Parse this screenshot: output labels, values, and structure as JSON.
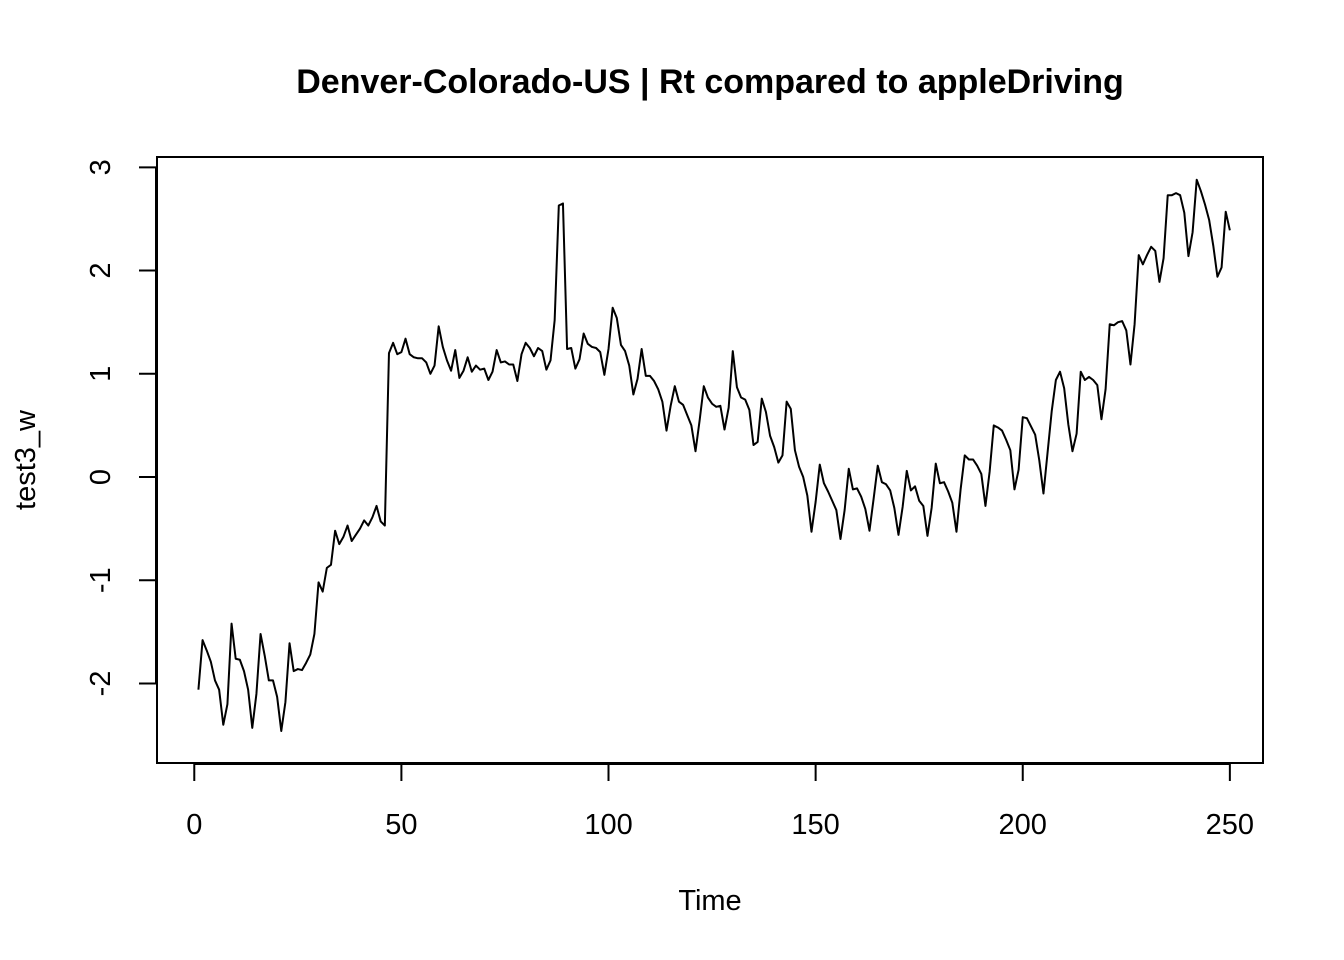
{
  "chart_data": {
    "type": "line",
    "title": "Denver-Colorado-US | Rt compared to appleDriving",
    "xlabel": "Time",
    "ylabel": "test3_w",
    "xlim": [
      -9,
      258
    ],
    "ylim": [
      -2.77,
      3.1
    ],
    "x_ticks": [
      0,
      50,
      100,
      150,
      200,
      250
    ],
    "y_ticks": [
      -2,
      -1,
      0,
      1,
      2,
      3
    ],
    "x_tick_labels": [
      "0",
      "50",
      "100",
      "150",
      "200",
      "250"
    ],
    "y_tick_labels": [
      "-2",
      "-1",
      "0",
      "1",
      "2",
      "3"
    ],
    "grid": false,
    "legend": "none",
    "line_color": "#000000",
    "x_start": 1,
    "values": [
      -2.06,
      -1.58,
      -1.68,
      -1.79,
      -1.97,
      -2.06,
      -2.4,
      -2.2,
      -1.42,
      -1.76,
      -1.77,
      -1.88,
      -2.06,
      -2.43,
      -2.1,
      -1.52,
      -1.73,
      -1.97,
      -1.97,
      -2.13,
      -2.46,
      -2.18,
      -1.61,
      -1.88,
      -1.86,
      -1.87,
      -1.8,
      -1.72,
      -1.52,
      -1.02,
      -1.11,
      -0.88,
      -0.85,
      -0.52,
      -0.65,
      -0.58,
      -0.47,
      -0.62,
      -0.56,
      -0.5,
      -0.42,
      -0.47,
      -0.39,
      -0.28,
      -0.43,
      -0.47,
      1.2,
      1.3,
      1.19,
      1.21,
      1.34,
      1.19,
      1.16,
      1.15,
      1.15,
      1.11,
      1.0,
      1.08,
      1.46,
      1.26,
      1.13,
      1.03,
      1.23,
      0.96,
      1.03,
      1.16,
      1.02,
      1.08,
      1.04,
      1.05,
      0.94,
      1.02,
      1.23,
      1.11,
      1.12,
      1.09,
      1.09,
      0.93,
      1.19,
      1.3,
      1.25,
      1.17,
      1.25,
      1.22,
      1.04,
      1.13,
      1.52,
      2.63,
      2.65,
      1.24,
      1.25,
      1.05,
      1.14,
      1.39,
      1.29,
      1.26,
      1.25,
      1.21,
      0.99,
      1.24,
      1.64,
      1.54,
      1.28,
      1.22,
      1.08,
      0.8,
      0.95,
      1.24,
      0.98,
      0.98,
      0.93,
      0.85,
      0.73,
      0.45,
      0.69,
      0.88,
      0.73,
      0.7,
      0.6,
      0.5,
      0.25,
      0.55,
      0.88,
      0.77,
      0.71,
      0.68,
      0.69,
      0.46,
      0.67,
      1.22,
      0.87,
      0.77,
      0.75,
      0.65,
      0.31,
      0.34,
      0.76,
      0.63,
      0.4,
      0.29,
      0.14,
      0.21,
      0.73,
      0.66,
      0.26,
      0.1,
      0.0,
      -0.18,
      -0.53,
      -0.24,
      0.12,
      -0.06,
      -0.14,
      -0.23,
      -0.32,
      -0.6,
      -0.32,
      0.08,
      -0.12,
      -0.11,
      -0.19,
      -0.31,
      -0.52,
      -0.21,
      0.11,
      -0.05,
      -0.07,
      -0.13,
      -0.3,
      -0.56,
      -0.29,
      0.06,
      -0.13,
      -0.09,
      -0.23,
      -0.28,
      -0.57,
      -0.3,
      0.13,
      -0.06,
      -0.05,
      -0.14,
      -0.25,
      -0.53,
      -0.12,
      0.21,
      0.17,
      0.17,
      0.11,
      0.03,
      -0.28,
      0.05,
      0.5,
      0.48,
      0.45,
      0.36,
      0.26,
      -0.12,
      0.07,
      0.58,
      0.57,
      0.49,
      0.41,
      0.16,
      -0.16,
      0.24,
      0.64,
      0.94,
      1.02,
      0.86,
      0.51,
      0.25,
      0.42,
      1.02,
      0.94,
      0.97,
      0.94,
      0.89,
      0.56,
      0.85,
      1.48,
      1.47,
      1.5,
      1.51,
      1.42,
      1.09,
      1.48,
      2.15,
      2.06,
      2.15,
      2.23,
      2.19,
      1.89,
      2.12,
      2.73,
      2.73,
      2.75,
      2.73,
      2.56,
      2.14,
      2.37,
      2.88,
      2.77,
      2.64,
      2.49,
      2.24,
      1.94,
      2.03,
      2.57,
      2.39
    ]
  }
}
